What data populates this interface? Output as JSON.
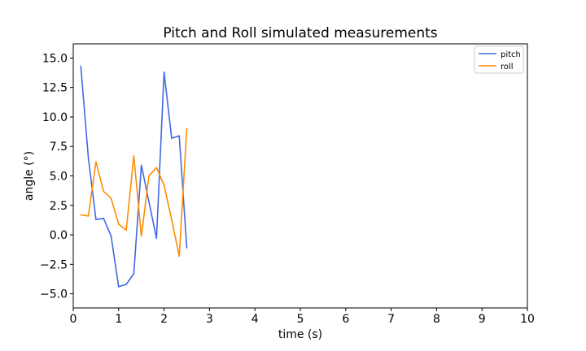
{
  "chart_data": {
    "type": "line",
    "title": "Pitch and Roll simulated measurements",
    "xlabel": "time (s)",
    "ylabel": "angle (°)",
    "xlim": [
      0,
      10
    ],
    "ylim": [
      -6.2,
      16.2
    ],
    "xticks": [
      0,
      1,
      2,
      3,
      4,
      5,
      6,
      7,
      8,
      9,
      10
    ],
    "yticks": [
      -5.0,
      -2.5,
      0.0,
      2.5,
      5.0,
      7.5,
      10.0,
      12.5,
      15.0
    ],
    "ytick_labels": [
      "−5.0",
      "−2.5",
      "0.0",
      "2.5",
      "5.0",
      "7.5",
      "10.0",
      "12.5",
      "15.0"
    ],
    "grid": false,
    "legend": "top-right",
    "series": [
      {
        "name": "pitch",
        "color": "#4169e1",
        "x": [
          0.167,
          0.333,
          0.5,
          0.667,
          0.833,
          1.0,
          1.167,
          1.333,
          1.5,
          1.667,
          1.833,
          2.0,
          2.167,
          2.333,
          2.5
        ],
        "y": [
          14.3,
          6.5,
          1.3,
          1.4,
          -0.1,
          -4.4,
          -4.2,
          -3.3,
          5.9,
          2.8,
          -0.3,
          13.8,
          8.2,
          8.4,
          -1.1
        ]
      },
      {
        "name": "roll",
        "color": "#ff8c00",
        "x": [
          0.167,
          0.333,
          0.5,
          0.667,
          0.833,
          1.0,
          1.167,
          1.333,
          1.5,
          1.667,
          1.833,
          2.0,
          2.167,
          2.333,
          2.5
        ],
        "y": [
          1.7,
          1.6,
          6.2,
          3.7,
          3.1,
          0.9,
          0.4,
          6.7,
          -0.1,
          5.0,
          5.7,
          4.2,
          1.3,
          -1.8,
          9.0
        ]
      }
    ]
  }
}
